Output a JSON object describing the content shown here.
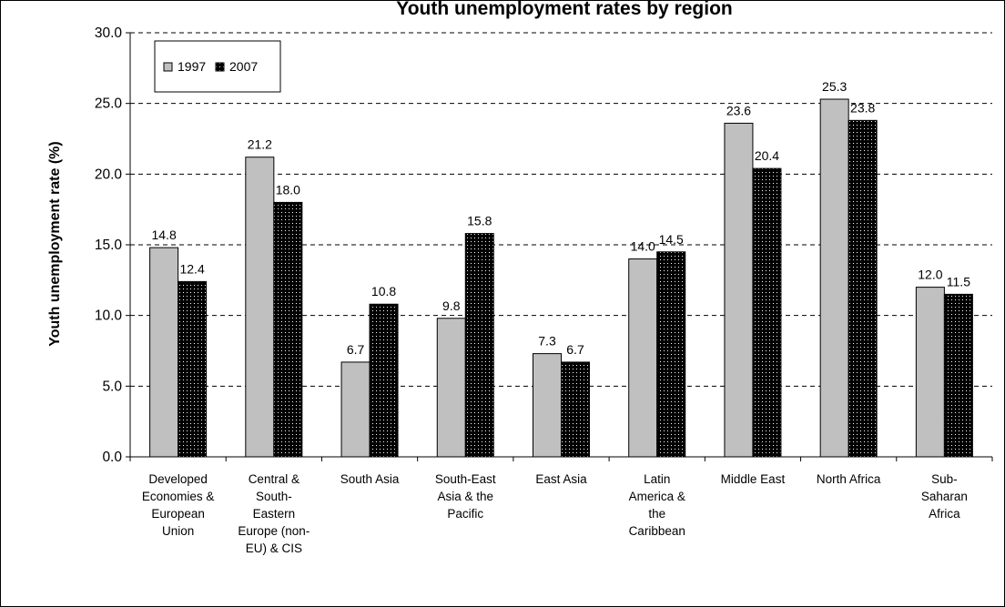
{
  "chart_data": {
    "type": "bar",
    "title": "Youth unemployment rates by region",
    "ylabel": "Youth unemployment rate (%)",
    "xlabel": "",
    "ylim": [
      0,
      30
    ],
    "yticks": [
      "0.0",
      "5.0",
      "10.0",
      "15.0",
      "20.0",
      "25.0",
      "30.0"
    ],
    "grid": "horizontal dashed",
    "legend_position": "top-left",
    "categories": [
      [
        "Developed",
        "Economies &",
        "European",
        "Union"
      ],
      [
        "Central &",
        "South-",
        "Eastern",
        "Europe (non-",
        "EU) & CIS"
      ],
      [
        "South Asia"
      ],
      [
        "South-East",
        "Asia & the",
        "Pacific"
      ],
      [
        "East Asia"
      ],
      [
        "Latin",
        "America &",
        "the",
        "Caribbean"
      ],
      [
        "Middle East"
      ],
      [
        "North Africa"
      ],
      [
        "Sub-",
        "Saharan",
        "Africa"
      ]
    ],
    "series": [
      {
        "name": "1997",
        "color": "#c0c0c0",
        "values": [
          14.8,
          21.2,
          6.7,
          9.8,
          7.3,
          14.0,
          23.6,
          25.3,
          12.0
        ],
        "labels": [
          "14.8",
          "21.2",
          "6.7",
          "9.8",
          "7.3",
          "14.0",
          "23.6",
          "25.3",
          "12.0"
        ]
      },
      {
        "name": "2007",
        "color": "#000000",
        "values": [
          12.4,
          18.0,
          10.8,
          15.8,
          6.7,
          14.5,
          20.4,
          23.8,
          11.5
        ],
        "labels": [
          "12.4",
          "18.0",
          "10.8",
          "15.8",
          "6.7",
          "14.5",
          "20.4",
          "23.8",
          "11.5"
        ]
      }
    ]
  }
}
